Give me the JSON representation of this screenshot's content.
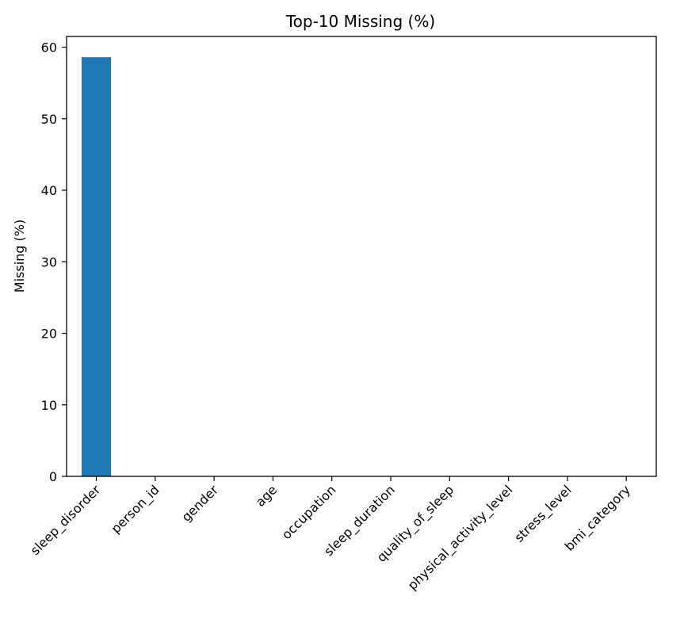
{
  "chart_data": {
    "type": "bar",
    "title": "Top-10 Missing (%)",
    "xlabel": "",
    "ylabel": "Missing (%)",
    "categories": [
      "sleep_disorder",
      "person_id",
      "gender",
      "age",
      "occupation",
      "sleep_duration",
      "quality_of_sleep",
      "physical_activity_level",
      "stress_level",
      "bmi_category"
    ],
    "values": [
      58.6,
      0,
      0,
      0,
      0,
      0,
      0,
      0,
      0,
      0
    ],
    "ylim": [
      0,
      61.5
    ],
    "yticks": [
      0,
      10,
      20,
      30,
      40,
      50,
      60
    ],
    "bar_color": "#1f77b4",
    "grid": false,
    "x_tick_rotation_deg": 45
  }
}
